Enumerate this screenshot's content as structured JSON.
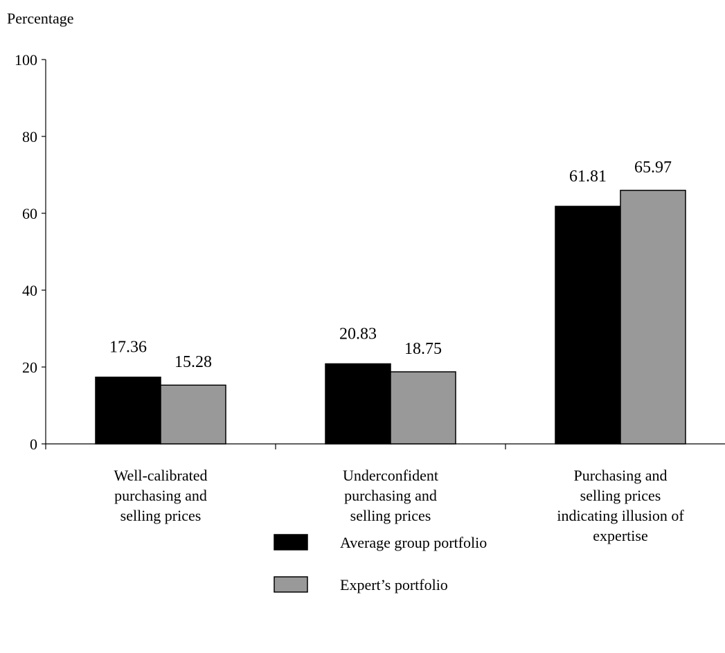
{
  "chart_data": {
    "type": "bar",
    "ylabel": "Percentage",
    "xlabel": "",
    "ylim": [
      0,
      100
    ],
    "yticks": [
      0,
      20,
      40,
      60,
      80,
      100
    ],
    "grid": false,
    "legend_position": "bottom-center",
    "categories": [
      [
        "Well-calibrated",
        "purchasing and",
        "selling prices"
      ],
      [
        "Underconfident",
        "purchasing and",
        "selling prices"
      ],
      [
        "Purchasing and",
        "selling prices",
        "indicating illusion of",
        "expertise"
      ]
    ],
    "series": [
      {
        "name": "Average group portfolio",
        "color": "#000000",
        "values": [
          17.36,
          20.83,
          61.81
        ]
      },
      {
        "name": "Expert’s portfolio",
        "color": "#999999",
        "values": [
          15.28,
          18.75,
          65.97
        ]
      }
    ],
    "data_labels": [
      [
        "17.36",
        "20.83",
        "61.81"
      ],
      [
        "15.28",
        "18.75",
        "65.97"
      ]
    ]
  }
}
